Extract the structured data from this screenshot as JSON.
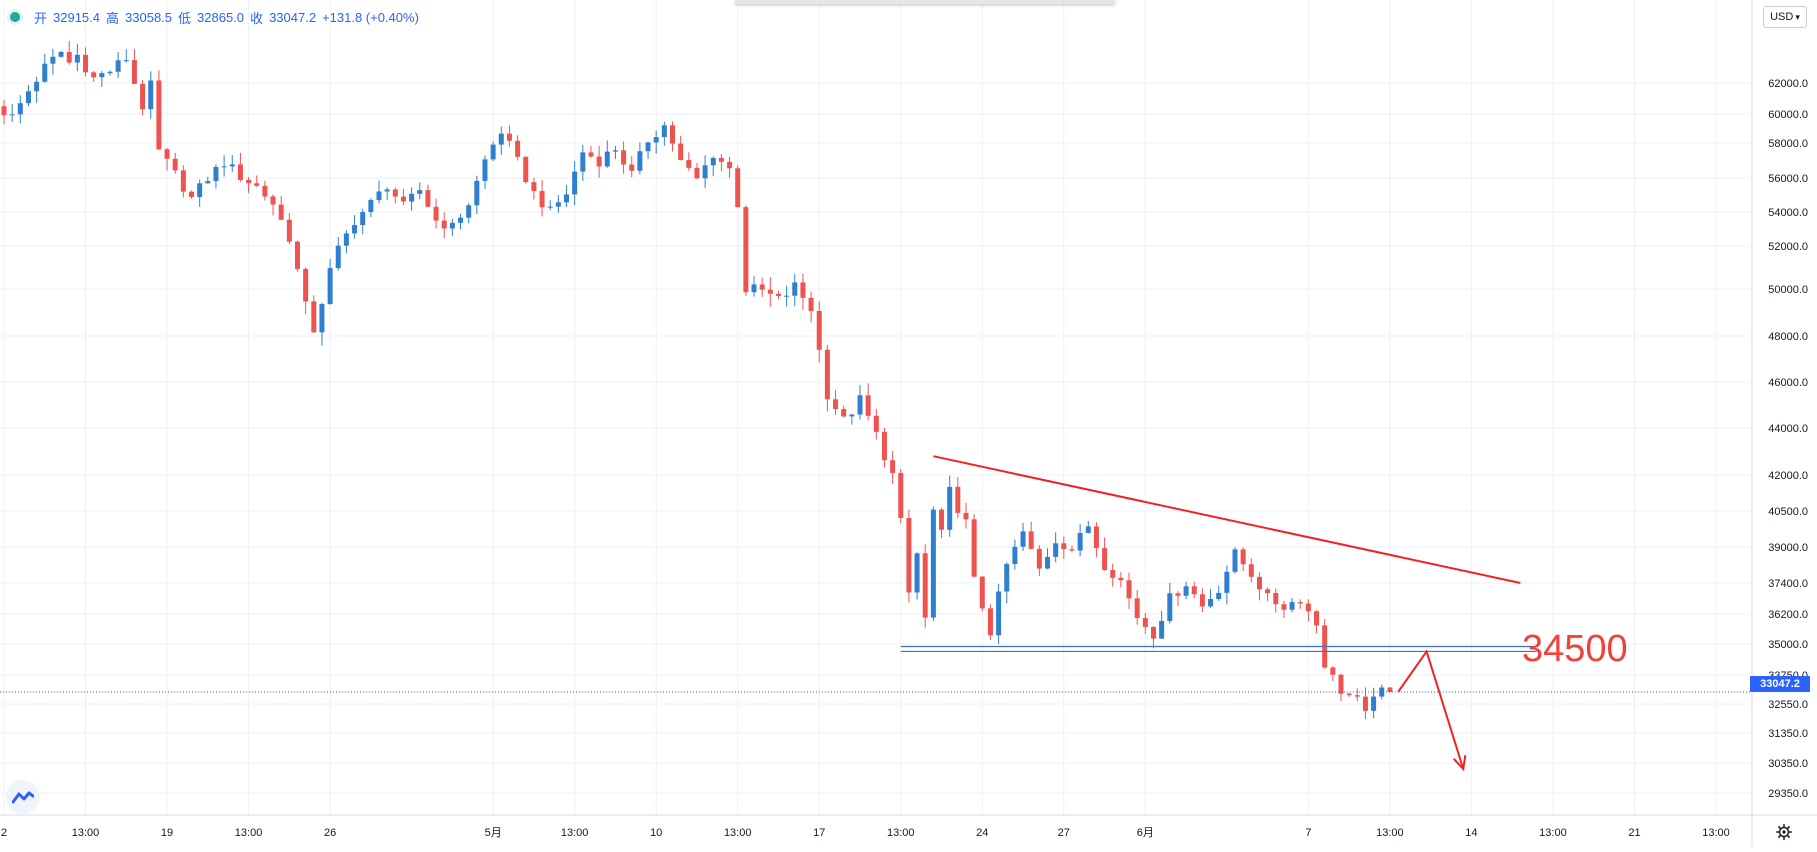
{
  "legend": {
    "open_label": "开",
    "open": "32915.4",
    "high_label": "高",
    "high": "33058.5",
    "low_label": "低",
    "low": "32865.0",
    "close_label": "收",
    "close": "33047.2",
    "change": "+131.8 (+0.40%)"
  },
  "currency": "USD",
  "current_price_tag": "33047.2",
  "annotation_label": "34500",
  "colors": {
    "up": "#2f7fd0",
    "down": "#ef5350",
    "trend": "#f02323",
    "support": "#3a6fd8",
    "price_line": "#2962ff",
    "grid": "#eef0f5"
  },
  "chart_data": {
    "type": "candlestick",
    "price_axis_ticks": [
      29350,
      30350,
      31350,
      32550,
      33750,
      35000,
      36200,
      37400,
      39000,
      40500,
      42000,
      44000,
      46000,
      48000,
      50000,
      52000,
      54000,
      56000,
      58000,
      60000,
      62000
    ],
    "price_tick_labels": [
      "29350.0",
      "30350.0",
      "31350.0",
      "32550.0",
      "33750.0",
      "35000.0",
      "36200.0",
      "37400.0",
      "39000.0",
      "40500.0",
      "42000.0",
      "44000.0",
      "46000.0",
      "48000.0",
      "50000.0",
      "52000.0",
      "54000.0",
      "56000.0",
      "58000.0",
      "60000.0",
      "62000.0"
    ],
    "time_labels": [
      {
        "label": "2",
        "x": 0
      },
      {
        "label": "13:00",
        "x": 1
      },
      {
        "label": "19",
        "x": 2
      },
      {
        "label": "13:00",
        "x": 3
      },
      {
        "label": "26",
        "x": 4
      },
      {
        "label": "5月",
        "x": 6
      },
      {
        "label": "13:00",
        "x": 7
      },
      {
        "label": "10",
        "x": 8
      },
      {
        "label": "13:00",
        "x": 9
      },
      {
        "label": "17",
        "x": 10
      },
      {
        "label": "13:00",
        "x": 11
      },
      {
        "label": "24",
        "x": 12
      },
      {
        "label": "27",
        "x": 13
      },
      {
        "label": "6月",
        "x": 14
      },
      {
        "label": "7",
        "x": 16
      },
      {
        "label": "13:00",
        "x": 17
      },
      {
        "label": "14",
        "x": 18
      },
      {
        "label": "13:00",
        "x": 19
      },
      {
        "label": "21",
        "x": 20
      },
      {
        "label": "13:00",
        "x": 21
      }
    ],
    "path_points": [
      [
        0,
        60500
      ],
      [
        0.2,
        59800
      ],
      [
        0.4,
        61500
      ],
      [
        0.6,
        63000
      ],
      [
        0.8,
        64000
      ],
      [
        0.9,
        63300
      ],
      [
        1.0,
        63800
      ],
      [
        1.2,
        62300
      ],
      [
        1.4,
        62800
      ],
      [
        1.6,
        63600
      ],
      [
        1.7,
        62000
      ],
      [
        1.8,
        60500
      ],
      [
        1.9,
        61800
      ],
      [
        2.0,
        57500
      ],
      [
        2.2,
        56200
      ],
      [
        2.4,
        54800
      ],
      [
        2.6,
        56000
      ],
      [
        2.8,
        56900
      ],
      [
        3.0,
        56100
      ],
      [
        3.2,
        55500
      ],
      [
        3.4,
        54500
      ],
      [
        3.6,
        52500
      ],
      [
        3.8,
        49200
      ],
      [
        3.9,
        48300
      ],
      [
        4.0,
        49500
      ],
      [
        4.1,
        50800
      ],
      [
        4.2,
        51800
      ],
      [
        4.4,
        53500
      ],
      [
        4.6,
        54500
      ],
      [
        4.8,
        55600
      ],
      [
        5.0,
        54300
      ],
      [
        5.2,
        55300
      ],
      [
        5.4,
        53500
      ],
      [
        5.6,
        53100
      ],
      [
        5.8,
        54500
      ],
      [
        6.0,
        57000
      ],
      [
        6.2,
        58800
      ],
      [
        6.4,
        56900
      ],
      [
        6.6,
        55100
      ],
      [
        6.8,
        54000
      ],
      [
        7.0,
        55100
      ],
      [
        7.2,
        57500
      ],
      [
        7.4,
        57000
      ],
      [
        7.6,
        57700
      ],
      [
        7.8,
        56200
      ],
      [
        8.0,
        58200
      ],
      [
        8.2,
        59200
      ],
      [
        8.4,
        56900
      ],
      [
        8.6,
        55900
      ],
      [
        8.8,
        57400
      ],
      [
        9.0,
        56500
      ],
      [
        9.1,
        54500
      ],
      [
        9.2,
        50000
      ],
      [
        9.4,
        49900
      ],
      [
        9.6,
        49500
      ],
      [
        9.8,
        50100
      ],
      [
        10.0,
        49200
      ],
      [
        10.2,
        45500
      ],
      [
        10.4,
        44300
      ],
      [
        10.6,
        45200
      ],
      [
        10.8,
        43700
      ],
      [
        11.0,
        42000
      ],
      [
        11.1,
        40000
      ],
      [
        11.2,
        37000
      ],
      [
        11.3,
        38700
      ],
      [
        11.4,
        36000
      ],
      [
        11.5,
        40500
      ],
      [
        11.6,
        39500
      ],
      [
        11.7,
        41300
      ],
      [
        11.9,
        40000
      ],
      [
        12.0,
        37500
      ],
      [
        12.2,
        35500
      ],
      [
        12.4,
        38200
      ],
      [
        12.6,
        39600
      ],
      [
        12.8,
        38000
      ],
      [
        13.0,
        39300
      ],
      [
        13.2,
        38900
      ],
      [
        13.4,
        39900
      ],
      [
        13.6,
        38200
      ],
      [
        13.8,
        37500
      ],
      [
        14.0,
        36100
      ],
      [
        14.2,
        35400
      ],
      [
        14.4,
        36800
      ],
      [
        14.6,
        37400
      ],
      [
        14.8,
        36500
      ],
      [
        15.0,
        37200
      ],
      [
        15.2,
        38700
      ],
      [
        15.4,
        37800
      ],
      [
        15.6,
        36800
      ],
      [
        15.8,
        36500
      ],
      [
        16.0,
        36800
      ],
      [
        16.2,
        35800
      ],
      [
        16.3,
        34200
      ],
      [
        16.5,
        33100
      ],
      [
        16.7,
        32700
      ],
      [
        16.8,
        32100
      ],
      [
        16.9,
        33000
      ],
      [
        17.0,
        33047
      ]
    ],
    "trendlines": [
      {
        "from": [
          11.4,
          42800
        ],
        "to": [
          18.6,
          37400
        ]
      },
      {
        "from": [
          11.0,
          34900
        ],
        "to": [
          18.8,
          34900
        ]
      },
      {
        "from": [
          11.0,
          34700
        ],
        "to": [
          18.8,
          34700
        ]
      }
    ],
    "projection_path": [
      [
        17.1,
        33047
      ],
      [
        17.45,
        34700
      ],
      [
        17.9,
        30150
      ]
    ],
    "annotations": [
      "34500"
    ]
  }
}
